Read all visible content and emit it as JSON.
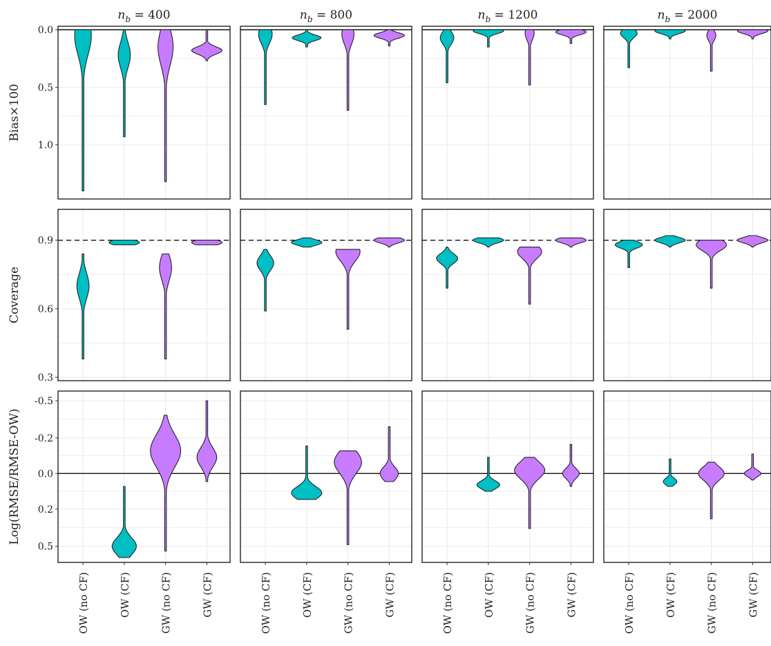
{
  "colors": {
    "OW": "#00BFC4",
    "GW": "#C77CFF",
    "grid": "#ebebeb",
    "edge": "#222222"
  },
  "chart_data": {
    "type": "violin",
    "categories": [
      "OW (no CF)",
      "OW (CF)",
      "GW (no CF)",
      "GW (CF)"
    ],
    "category_color_keys": [
      "OW",
      "OW",
      "GW",
      "GW"
    ],
    "columns": [
      {
        "title": "n_b = 400",
        "nb": "400"
      },
      {
        "title": "n_b = 800",
        "nb": "800"
      },
      {
        "title": "n_b = 1200",
        "nb": "1200"
      },
      {
        "title": "n_b = 2000",
        "nb": "2000"
      }
    ],
    "rows": [
      {
        "label": "Bias×100",
        "y_reversed": true,
        "ylim": [
          -0.03,
          1.47
        ],
        "ticks": [
          0.0,
          0.5,
          1.0
        ],
        "tick_labels": [
          "0.0",
          "0.5",
          "1.0"
        ],
        "ref_line": 0.0,
        "ref_dashed": false,
        "panels": [
          [
            {
              "min": 0.0,
              "max": 1.4,
              "peak": 0.05,
              "width": 0.55
            },
            {
              "min": 0.0,
              "max": 0.93,
              "peak": 0.22,
              "width": 0.4
            },
            {
              "min": 0.0,
              "max": 1.32,
              "peak": 0.15,
              "width": 0.5
            },
            {
              "min": 0.0,
              "max": 0.27,
              "peak": 0.18,
              "width": 1.0
            }
          ],
          [
            {
              "min": 0.0,
              "max": 0.65,
              "peak": 0.04,
              "width": 0.45
            },
            {
              "min": 0.0,
              "max": 0.15,
              "peak": 0.07,
              "width": 0.95
            },
            {
              "min": 0.0,
              "max": 0.7,
              "peak": 0.04,
              "width": 0.4
            },
            {
              "min": 0.0,
              "max": 0.14,
              "peak": 0.05,
              "width": 1.0
            }
          ],
          [
            {
              "min": 0.0,
              "max": 0.46,
              "peak": 0.07,
              "width": 0.45
            },
            {
              "min": 0.0,
              "max": 0.15,
              "peak": 0.01,
              "width": 1.0
            },
            {
              "min": 0.0,
              "max": 0.48,
              "peak": 0.03,
              "width": 0.3
            },
            {
              "min": 0.0,
              "max": 0.12,
              "peak": 0.02,
              "width": 1.0
            }
          ],
          [
            {
              "min": 0.0,
              "max": 0.33,
              "peak": 0.03,
              "width": 0.55
            },
            {
              "min": 0.0,
              "max": 0.08,
              "peak": 0.01,
              "width": 1.0
            },
            {
              "min": 0.0,
              "max": 0.36,
              "peak": 0.05,
              "width": 0.3
            },
            {
              "min": 0.0,
              "max": 0.08,
              "peak": 0.01,
              "width": 1.0
            }
          ]
        ]
      },
      {
        "label": "Coverage",
        "y_reversed": false,
        "ylim": [
          0.285,
          1.035
        ],
        "ticks": [
          0.3,
          0.6,
          0.9
        ],
        "tick_labels": [
          "0.3",
          "0.6",
          "0.9"
        ],
        "ref_line": 0.9,
        "ref_dashed": true,
        "panels": [
          [
            {
              "min": 0.38,
              "max": 0.84,
              "peak": 0.7,
              "width": 0.4
            },
            {
              "min": 0.88,
              "max": 0.9,
              "peak": 0.89,
              "width": 1.0
            },
            {
              "min": 0.38,
              "max": 0.84,
              "peak": 0.78,
              "width": 0.4
            },
            {
              "min": 0.88,
              "max": 0.9,
              "peak": 0.89,
              "width": 1.0
            }
          ],
          [
            {
              "min": 0.59,
              "max": 0.86,
              "peak": 0.8,
              "width": 0.55
            },
            {
              "min": 0.87,
              "max": 0.91,
              "peak": 0.89,
              "width": 1.0
            },
            {
              "min": 0.51,
              "max": 0.86,
              "peak": 0.85,
              "width": 0.8
            },
            {
              "min": 0.87,
              "max": 0.91,
              "peak": 0.9,
              "width": 1.0
            }
          ],
          [
            {
              "min": 0.69,
              "max": 0.87,
              "peak": 0.82,
              "width": 0.7
            },
            {
              "min": 0.87,
              "max": 0.91,
              "peak": 0.9,
              "width": 1.0
            },
            {
              "min": 0.62,
              "max": 0.87,
              "peak": 0.85,
              "width": 0.8
            },
            {
              "min": 0.87,
              "max": 0.91,
              "peak": 0.9,
              "width": 1.0
            }
          ],
          [
            {
              "min": 0.78,
              "max": 0.9,
              "peak": 0.88,
              "width": 0.9
            },
            {
              "min": 0.87,
              "max": 0.92,
              "peak": 0.9,
              "width": 1.0
            },
            {
              "min": 0.69,
              "max": 0.9,
              "peak": 0.88,
              "width": 1.0
            },
            {
              "min": 0.87,
              "max": 0.92,
              "peak": 0.9,
              "width": 1.0
            }
          ]
        ]
      },
      {
        "label": "Log(RMSE/RMSE-OW)",
        "y_reversed": true,
        "ylim": [
          -0.51,
          0.55
        ],
        "ticks": [
          -0.45,
          -0.22,
          0.0,
          0.22,
          0.45
        ],
        "tick_labels": [
          "-0.5",
          "-0.2",
          "0.0",
          "0.2",
          "0.5"
        ],
        "ref_line": 0.0,
        "ref_dashed": false,
        "panels": [
          [
            null,
            {
              "min": 0.08,
              "max": 0.52,
              "peak": 0.45,
              "width": 0.8
            },
            {
              "min": -0.36,
              "max": 0.48,
              "peak": -0.14,
              "width": 1.0
            },
            {
              "min": -0.45,
              "max": 0.05,
              "peak": -0.1,
              "width": 0.65
            }
          ],
          [
            null,
            {
              "min": -0.17,
              "max": 0.16,
              "peak": 0.12,
              "width": 1.0
            },
            {
              "min": -0.14,
              "max": 0.44,
              "peak": -0.07,
              "width": 0.9
            },
            {
              "min": -0.29,
              "max": 0.05,
              "peak": 0.0,
              "width": 0.6
            }
          ],
          [
            null,
            {
              "min": -0.1,
              "max": 0.11,
              "peak": 0.07,
              "width": 0.75
            },
            {
              "min": -0.1,
              "max": 0.34,
              "peak": -0.02,
              "width": 1.0
            },
            {
              "min": -0.18,
              "max": 0.08,
              "peak": 0.0,
              "width": 0.55
            }
          ],
          [
            null,
            {
              "min": -0.09,
              "max": 0.08,
              "peak": 0.05,
              "width": 0.45
            },
            {
              "min": -0.07,
              "max": 0.28,
              "peak": 0.0,
              "width": 0.85
            },
            {
              "min": -0.12,
              "max": 0.04,
              "peak": 0.0,
              "width": 0.55
            }
          ]
        ]
      }
    ]
  }
}
